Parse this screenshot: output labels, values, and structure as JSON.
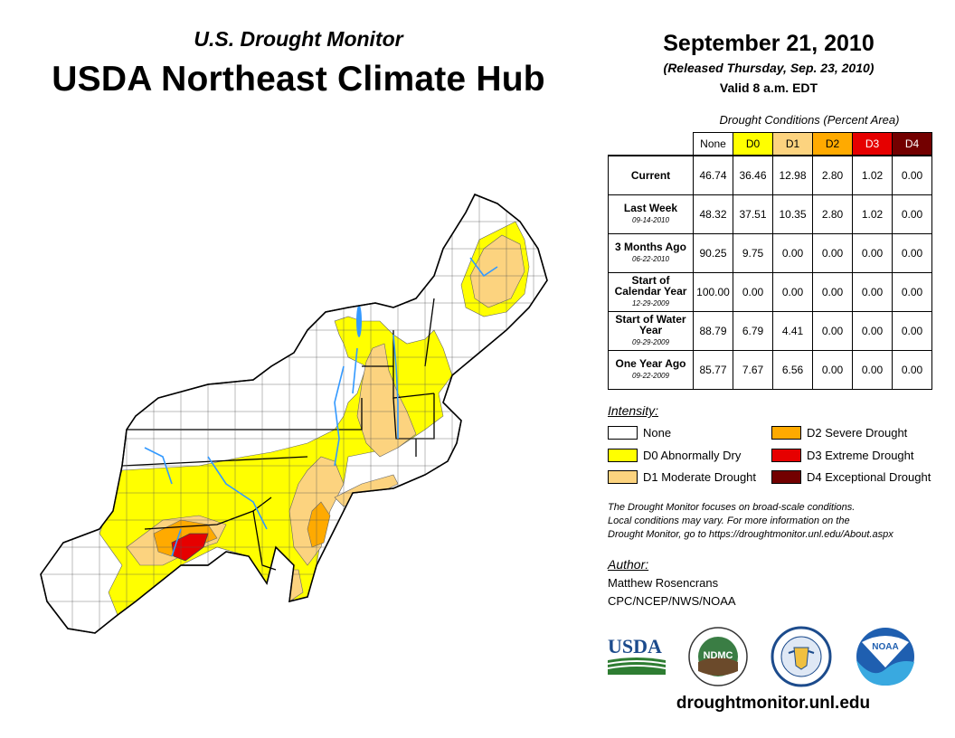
{
  "header": {
    "subtitle": "U.S. Drought Monitor",
    "title": "USDA Northeast Climate Hub",
    "date": "September 21, 2010",
    "released": "(Released Thursday, Sep. 23, 2010)",
    "valid": "Valid 8 a.m. EDT"
  },
  "table": {
    "caption": "Drought Conditions (Percent Area)",
    "columns": [
      {
        "label": "None",
        "color": "#ffffff"
      },
      {
        "label": "D0",
        "color": "#ffff00"
      },
      {
        "label": "D1",
        "color": "#fcd37f"
      },
      {
        "label": "D2",
        "color": "#ffaa00"
      },
      {
        "label": "D3",
        "color": "#e60000"
      },
      {
        "label": "D4",
        "color": "#730000"
      }
    ],
    "rows": [
      {
        "label": "Current",
        "sub": "",
        "values": [
          "46.74",
          "36.46",
          "12.98",
          "2.80",
          "1.02",
          "0.00"
        ]
      },
      {
        "label": "Last Week",
        "sub": "09-14-2010",
        "values": [
          "48.32",
          "37.51",
          "10.35",
          "2.80",
          "1.02",
          "0.00"
        ]
      },
      {
        "label": "3 Months Ago",
        "sub": "06-22-2010",
        "values": [
          "90.25",
          "9.75",
          "0.00",
          "0.00",
          "0.00",
          "0.00"
        ]
      },
      {
        "label": "Start of Calendar Year",
        "sub": "12-29-2009",
        "values": [
          "100.00",
          "0.00",
          "0.00",
          "0.00",
          "0.00",
          "0.00"
        ]
      },
      {
        "label": "Start of Water Year",
        "sub": "09-29-2009",
        "values": [
          "88.79",
          "6.79",
          "4.41",
          "0.00",
          "0.00",
          "0.00"
        ]
      },
      {
        "label": "One Year Ago",
        "sub": "09-22-2009",
        "values": [
          "85.77",
          "7.67",
          "6.56",
          "0.00",
          "0.00",
          "0.00"
        ]
      }
    ]
  },
  "legend": {
    "title": "Intensity:",
    "items": [
      {
        "label": "None",
        "color": "#ffffff"
      },
      {
        "label": "D0 Abnormally Dry",
        "color": "#ffff00"
      },
      {
        "label": "D1 Moderate Drought",
        "color": "#fcd37f"
      },
      {
        "label": "D2 Severe Drought",
        "color": "#ffaa00"
      },
      {
        "label": "D3 Extreme Drought",
        "color": "#e60000"
      },
      {
        "label": "D4 Exceptional Drought",
        "color": "#730000"
      }
    ]
  },
  "note": {
    "line1": "The Drought Monitor focuses on broad-scale conditions.",
    "line2": "Local conditions may vary. For more information on the",
    "line3": "Drought Monitor, go to https://droughtmonitor.unl.edu/About.aspx"
  },
  "author": {
    "title": "Author:",
    "name": "Matthew Rosencrans",
    "org": "CPC/NCEP/NWS/NOAA"
  },
  "logos": {
    "usda": "USDA",
    "ndmc": "NDMC",
    "noaa": "NOAA"
  },
  "footer": {
    "url": "droughtmonitor.unl.edu"
  }
}
